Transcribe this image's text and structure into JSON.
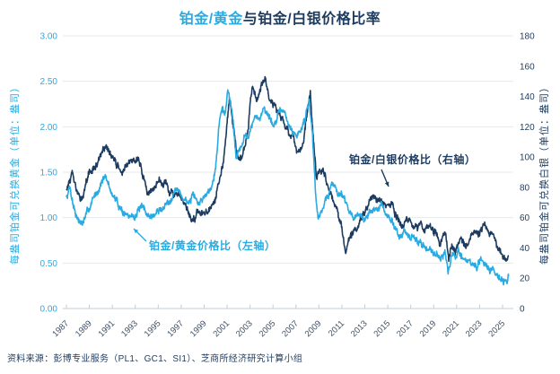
{
  "title": {
    "part1": "铂金/黄金",
    "part2": "与铂金/白银价格比率"
  },
  "colors": {
    "light_blue": "#29ABE2",
    "navy": "#1C3B5F",
    "grid": "#E4E9ED",
    "axis_line": "#C3CDD6",
    "x_tick_label": "#3E5064"
  },
  "left_axis": {
    "label": "每盎司铂金可兑换黄金（单位：盎司）",
    "min": 0,
    "max": 3,
    "step": 0.5,
    "decimals": 2
  },
  "right_axis": {
    "label": "每盎司铂金可兑换白银（单位：盎司）",
    "min": 0,
    "max": 180,
    "step": 20,
    "decimals": 0
  },
  "x_axis": {
    "start_year": 1987,
    "end_year": 2025,
    "label_step": 2
  },
  "annotations": [
    {
      "text": "铂金/白银价格比（右轴）",
      "color_key": "navy"
    },
    {
      "text": "铂金/黄金价格比（左轴）",
      "color_key": "light_blue"
    }
  ],
  "source": "资料来源：彭博专业服务（PL1、GC1、SI1）、芝商所经济研究计算小组",
  "chart_data": {
    "type": "line",
    "title": "铂金/黄金与铂金/白银价格比率",
    "x_range": [
      1987,
      2025.55
    ],
    "left_ylim": [
      0,
      3
    ],
    "right_ylim": [
      0,
      180
    ],
    "grid": "horizontal-only",
    "legend": "in-chart arrow annotations",
    "series": [
      {
        "name": "铂金/黄金价格比",
        "axis": "left",
        "color": "#29ABE2",
        "points": [
          [
            1987.0,
            1.22
          ],
          [
            1987.3,
            1.35
          ],
          [
            1987.6,
            1.15
          ],
          [
            1988.0,
            0.98
          ],
          [
            1988.4,
            0.93
          ],
          [
            1988.8,
            1.05
          ],
          [
            1989.3,
            1.2
          ],
          [
            1989.8,
            1.32
          ],
          [
            1990.2,
            1.45
          ],
          [
            1990.6,
            1.38
          ],
          [
            1991.0,
            1.25
          ],
          [
            1991.5,
            1.15
          ],
          [
            1992.0,
            1.06
          ],
          [
            1992.5,
            1.0
          ],
          [
            1993.0,
            1.04
          ],
          [
            1993.5,
            1.1
          ],
          [
            1994.0,
            1.04
          ],
          [
            1994.5,
            1.01
          ],
          [
            1995.0,
            1.07
          ],
          [
            1995.5,
            1.12
          ],
          [
            1996.0,
            1.2
          ],
          [
            1996.5,
            1.33
          ],
          [
            1997.0,
            1.24
          ],
          [
            1997.5,
            1.17
          ],
          [
            1998.0,
            1.22
          ],
          [
            1998.5,
            1.15
          ],
          [
            1999.0,
            1.24
          ],
          [
            1999.5,
            1.32
          ],
          [
            2000.0,
            1.55
          ],
          [
            2000.3,
            2.05
          ],
          [
            2000.6,
            2.2
          ],
          [
            2000.85,
            2.15
          ],
          [
            2001.05,
            2.4
          ],
          [
            2001.4,
            2.22
          ],
          [
            2001.8,
            1.68
          ],
          [
            2002.2,
            1.8
          ],
          [
            2002.6,
            1.9
          ],
          [
            2003.0,
            1.95
          ],
          [
            2003.4,
            2.1
          ],
          [
            2003.8,
            2.05
          ],
          [
            2004.2,
            2.25
          ],
          [
            2004.6,
            2.12
          ],
          [
            2005.0,
            2.02
          ],
          [
            2005.4,
            2.1
          ],
          [
            2005.8,
            2.2
          ],
          [
            2006.2,
            2.08
          ],
          [
            2006.6,
            1.95
          ],
          [
            2007.0,
            1.9
          ],
          [
            2007.4,
            1.96
          ],
          [
            2007.8,
            2.1
          ],
          [
            2008.15,
            2.33
          ],
          [
            2008.45,
            1.9
          ],
          [
            2008.7,
            1.3
          ],
          [
            2008.95,
            0.96
          ],
          [
            2009.3,
            1.12
          ],
          [
            2009.7,
            1.22
          ],
          [
            2010.2,
            1.37
          ],
          [
            2010.6,
            1.3
          ],
          [
            2011.0,
            1.28
          ],
          [
            2011.4,
            1.18
          ],
          [
            2011.8,
            1.02
          ],
          [
            2012.2,
            1.03
          ],
          [
            2012.6,
            0.97
          ],
          [
            2013.0,
            1.0
          ],
          [
            2013.5,
            1.06
          ],
          [
            2014.0,
            1.09
          ],
          [
            2014.4,
            1.12
          ],
          [
            2014.8,
            1.04
          ],
          [
            2015.2,
            0.97
          ],
          [
            2015.6,
            0.92
          ],
          [
            2016.0,
            0.81
          ],
          [
            2016.4,
            0.84
          ],
          [
            2016.8,
            0.78
          ],
          [
            2017.3,
            0.77
          ],
          [
            2017.8,
            0.72
          ],
          [
            2018.3,
            0.68
          ],
          [
            2018.8,
            0.64
          ],
          [
            2019.3,
            0.61
          ],
          [
            2019.7,
            0.57
          ],
          [
            2020.0,
            0.6
          ],
          [
            2020.25,
            0.42
          ],
          [
            2020.6,
            0.56
          ],
          [
            2021.0,
            0.58
          ],
          [
            2021.2,
            0.63
          ],
          [
            2021.6,
            0.56
          ],
          [
            2022.0,
            0.51
          ],
          [
            2022.4,
            0.49
          ],
          [
            2022.7,
            0.46
          ],
          [
            2023.2,
            0.51
          ],
          [
            2023.6,
            0.47
          ],
          [
            2024.0,
            0.44
          ],
          [
            2024.5,
            0.4
          ],
          [
            2024.9,
            0.35
          ],
          [
            2025.2,
            0.29
          ],
          [
            2025.4,
            0.26
          ],
          [
            2025.55,
            0.36
          ]
        ]
      },
      {
        "name": "铂金/白银价格比",
        "axis": "right",
        "color": "#1C3B5F",
        "points": [
          [
            1987.0,
            79
          ],
          [
            1987.5,
            88
          ],
          [
            1988.1,
            72
          ],
          [
            1988.6,
            78
          ],
          [
            1989.0,
            90
          ],
          [
            1989.5,
            93
          ],
          [
            1990.0,
            100
          ],
          [
            1990.4,
            107
          ],
          [
            1990.8,
            102
          ],
          [
            1991.3,
            96
          ],
          [
            1991.8,
            90
          ],
          [
            1992.3,
            93
          ],
          [
            1992.8,
            98
          ],
          [
            1993.2,
            101
          ],
          [
            1993.7,
            88
          ],
          [
            1994.1,
            74
          ],
          [
            1994.6,
            80
          ],
          [
            1995.1,
            85
          ],
          [
            1995.6,
            83
          ],
          [
            1996.1,
            77
          ],
          [
            1996.6,
            74
          ],
          [
            1997.1,
            70
          ],
          [
            1997.5,
            64
          ],
          [
            1998.0,
            58
          ],
          [
            1998.4,
            64
          ],
          [
            1998.9,
            61
          ],
          [
            1999.4,
            63
          ],
          [
            1999.9,
            68
          ],
          [
            2000.3,
            82
          ],
          [
            2000.7,
            100
          ],
          [
            2001.0,
            125
          ],
          [
            2001.2,
            140
          ],
          [
            2001.6,
            118
          ],
          [
            2002.0,
            96
          ],
          [
            2002.4,
            101
          ],
          [
            2002.8,
            116
          ],
          [
            2003.2,
            148
          ],
          [
            2003.6,
            140
          ],
          [
            2004.0,
            150
          ],
          [
            2004.35,
            154
          ],
          [
            2004.7,
            138
          ],
          [
            2005.1,
            134
          ],
          [
            2005.5,
            129
          ],
          [
            2005.9,
            124
          ],
          [
            2006.3,
            118
          ],
          [
            2006.8,
            112
          ],
          [
            2007.2,
            100
          ],
          [
            2007.6,
            106
          ],
          [
            2008.0,
            128
          ],
          [
            2008.25,
            141
          ],
          [
            2008.5,
            112
          ],
          [
            2008.8,
            86
          ],
          [
            2009.2,
            90
          ],
          [
            2009.6,
            86
          ],
          [
            2010.0,
            78
          ],
          [
            2010.5,
            68
          ],
          [
            2011.0,
            54
          ],
          [
            2011.35,
            38
          ],
          [
            2011.7,
            47
          ],
          [
            2012.1,
            51
          ],
          [
            2012.6,
            56
          ],
          [
            2013.0,
            62
          ],
          [
            2013.4,
            70
          ],
          [
            2013.8,
            75
          ],
          [
            2014.3,
            70
          ],
          [
            2014.8,
            66
          ],
          [
            2015.3,
            68
          ],
          [
            2015.8,
            61
          ],
          [
            2016.2,
            55
          ],
          [
            2016.7,
            58
          ],
          [
            2017.2,
            54
          ],
          [
            2017.7,
            56
          ],
          [
            2018.2,
            53
          ],
          [
            2018.7,
            55
          ],
          [
            2019.2,
            50
          ],
          [
            2019.6,
            44
          ],
          [
            2020.0,
            50
          ],
          [
            2020.3,
            34
          ],
          [
            2020.55,
            44
          ],
          [
            2020.9,
            36
          ],
          [
            2021.3,
            46
          ],
          [
            2021.8,
            43
          ],
          [
            2022.2,
            45
          ],
          [
            2022.6,
            51
          ],
          [
            2022.9,
            48
          ],
          [
            2023.3,
            54
          ],
          [
            2023.8,
            50
          ],
          [
            2024.2,
            46
          ],
          [
            2024.6,
            40
          ],
          [
            2025.0,
            34
          ],
          [
            2025.3,
            30
          ],
          [
            2025.55,
            37
          ]
        ]
      }
    ]
  }
}
